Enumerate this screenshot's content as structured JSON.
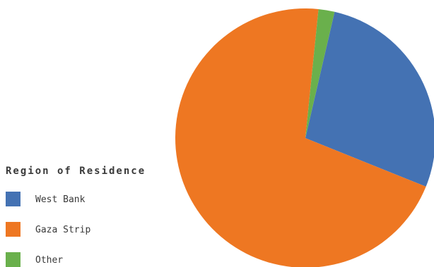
{
  "chart_data": {
    "type": "pie",
    "legend_title": "Region of Residence",
    "legend_position": "bottom-left",
    "start_angle_deg": 13,
    "slices": [
      {
        "label": "West Bank",
        "value": 27.5,
        "color": "#4472b3"
      },
      {
        "label": "Gaza Strip",
        "value": 70.5,
        "color": "#ee7722"
      },
      {
        "label": "Other",
        "value": 2.0,
        "color": "#6ab04c"
      }
    ]
  }
}
